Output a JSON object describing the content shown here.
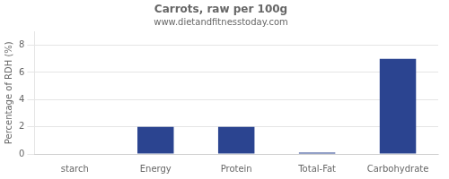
{
  "chart_data": {
    "type": "bar",
    "title": "Carrots, raw per 100g",
    "subtitle": "www.dietandfitnesstoday.com",
    "categories": [
      "starch",
      "Energy",
      "Protein",
      "Total-Fat",
      "Carbohydrate"
    ],
    "values": [
      0,
      2,
      2,
      0.1,
      7
    ],
    "color": "#2b4490",
    "ylabel": "Percentage of RDH (%)",
    "ylim": [
      0,
      9
    ],
    "yticks": [
      0,
      2,
      4,
      6,
      8
    ],
    "grid": true
  }
}
